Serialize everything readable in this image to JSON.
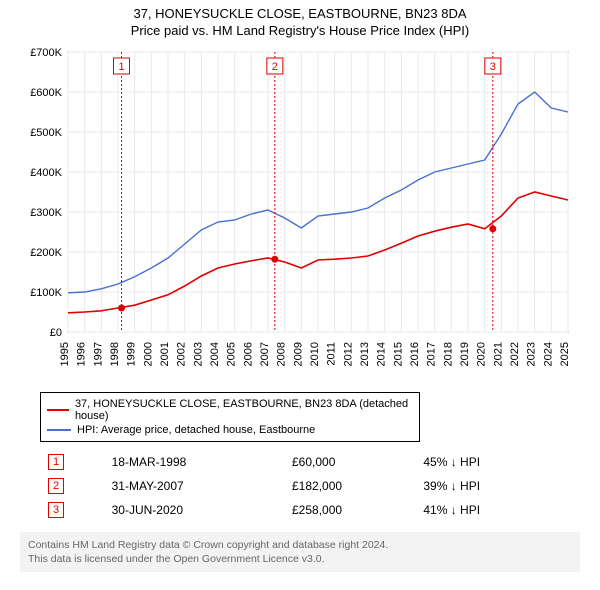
{
  "title_main": "37, HONEYSUCKLE CLOSE, EASTBOURNE, BN23 8DA",
  "title_sub": "Price paid vs. HM Land Registry's House Price Index (HPI)",
  "chart": {
    "type": "line",
    "background_color": "#ffffff",
    "grid_color": "#e8e8e8",
    "axis_color": "#666666",
    "x_years": [
      1995,
      1996,
      1997,
      1998,
      1999,
      2000,
      2001,
      2002,
      2003,
      2004,
      2005,
      2006,
      2007,
      2008,
      2009,
      2010,
      2011,
      2012,
      2013,
      2014,
      2015,
      2016,
      2017,
      2018,
      2019,
      2020,
      2021,
      2022,
      2023,
      2024,
      2025
    ],
    "y_min": 0,
    "y_max": 700000,
    "y_tick_step": 100000,
    "y_tick_labels": [
      "£0",
      "£100K",
      "£200K",
      "£300K",
      "£400K",
      "£500K",
      "£600K",
      "£700K"
    ],
    "series": [
      {
        "id": "property",
        "label": "37, HONEYSUCKLE CLOSE, EASTBOURNE, BN23 8DA (detached house)",
        "color": "#e00000",
        "line_width": 1.6,
        "values": [
          48000,
          50000,
          53000,
          60000,
          67000,
          80000,
          93000,
          115000,
          140000,
          160000,
          170000,
          178000,
          185000,
          175000,
          160000,
          180000,
          182000,
          185000,
          190000,
          205000,
          222000,
          240000,
          252000,
          262000,
          270000,
          258000,
          290000,
          335000,
          350000,
          340000,
          330000
        ]
      },
      {
        "id": "hpi",
        "label": "HPI: Average price, detached house, Eastbourne",
        "color": "#4a6fd4",
        "line_width": 1.4,
        "values": [
          98000,
          100000,
          108000,
          120000,
          138000,
          160000,
          185000,
          220000,
          255000,
          275000,
          280000,
          295000,
          305000,
          285000,
          260000,
          290000,
          295000,
          300000,
          310000,
          335000,
          355000,
          380000,
          400000,
          410000,
          420000,
          430000,
          495000,
          570000,
          600000,
          560000,
          550000
        ]
      }
    ],
    "sale_markers": [
      {
        "n": 1,
        "year": 1998.21,
        "value": 60000,
        "marker_color": "#e00000",
        "line_color": "#e00000"
      },
      {
        "n": 2,
        "year": 2007.41,
        "value": 182000,
        "marker_color": "#e00000",
        "line_color": "#e00000"
      },
      {
        "n": 3,
        "year": 2020.49,
        "value": 258000,
        "marker_color": "#e00000",
        "line_color": "#e00000"
      }
    ]
  },
  "legend": {
    "items": [
      {
        "color": "#e00000",
        "label": "37, HONEYSUCKLE CLOSE, EASTBOURNE, BN23 8DA (detached house)"
      },
      {
        "color": "#4a6fd4",
        "label": "HPI: Average price, detached house, Eastbourne"
      }
    ]
  },
  "sales": [
    {
      "n": "1",
      "badge_color": "#e00000",
      "date": "18-MAR-1998",
      "price": "£60,000",
      "delta": "45% ↓ HPI"
    },
    {
      "n": "2",
      "badge_color": "#e00000",
      "date": "31-MAY-2007",
      "price": "£182,000",
      "delta": "39% ↓ HPI"
    },
    {
      "n": "3",
      "badge_color": "#e00000",
      "date": "30-JUN-2020",
      "price": "£258,000",
      "delta": "41% ↓ HPI"
    }
  ],
  "footer_line1": "Contains HM Land Registry data © Crown copyright and database right 2024.",
  "footer_line2": "This data is licensed under the Open Government Licence v3.0."
}
